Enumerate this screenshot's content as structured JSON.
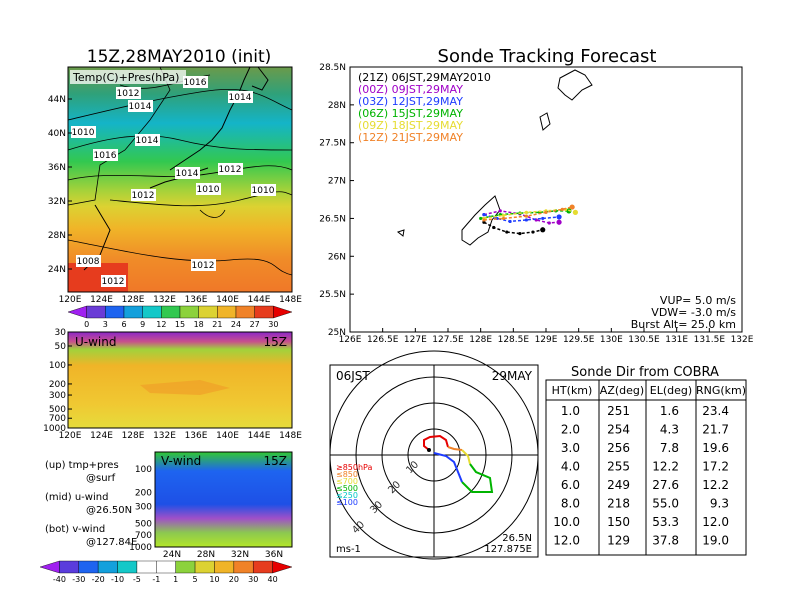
{
  "left": {
    "title": "15Z,28MAY2010 (init)",
    "map_label": "Temp(C)+Pres(hPa)",
    "lon_ticks": [
      "120E",
      "124E",
      "128E",
      "132E",
      "136E",
      "140E",
      "144E",
      "148E"
    ],
    "lat_ticks": [
      "44N",
      "40N",
      "36N",
      "32N",
      "28N",
      "24N"
    ],
    "isobars": [
      "1012",
      "1014",
      "1016",
      "1014",
      "1010",
      "1014",
      "1016",
      "1014",
      "1012",
      "1010",
      "1010",
      "1012",
      "1008",
      "1012",
      "1012"
    ],
    "temp_colorbar": [
      "0",
      "3",
      "6",
      "9",
      "12",
      "15",
      "18",
      "21",
      "24",
      "27",
      "30"
    ],
    "u_title": "U-wind",
    "u_time": "15Z",
    "u_lon_ticks": [
      "120E",
      "124E",
      "128E",
      "132E",
      "136E",
      "140E",
      "144E",
      "148E"
    ],
    "p_ticks": [
      "30",
      "50",
      "100",
      "200",
      "300",
      "500",
      "700",
      "1000"
    ],
    "v_title": "V-wind",
    "v_time": "15Z",
    "v_lat_ticks": [
      "24N",
      "28N",
      "32N",
      "36N"
    ],
    "v_p_ticks": [
      "100",
      "200",
      "300",
      "500",
      "700",
      "1000"
    ],
    "wind_colorbar": [
      "-40",
      "-30",
      "-20",
      "-10",
      "-5",
      "-1",
      "1",
      "5",
      "10",
      "20",
      "30",
      "40"
    ],
    "legend": {
      "l1a": "(up) tmp+pres",
      "l1b": "@surf",
      "l2a": "(mid) u-wind",
      "l2b": "@26.50N",
      "l3a": "(bot) v-wind",
      "l3b": "@127.84E"
    }
  },
  "forecast": {
    "title": "Sonde Tracking Forecast",
    "lat_ticks": [
      "28.5N",
      "28N",
      "27.5N",
      "27N",
      "26.5N",
      "26N",
      "25.5N",
      "25N"
    ],
    "lon_ticks": [
      "126E",
      "126.5E",
      "127E",
      "127.5E",
      "128E",
      "128.5E",
      "129E",
      "129.5E",
      "130E",
      "130.5E",
      "131E",
      "131.5E",
      "132E"
    ],
    "legend": [
      {
        "label": "(21Z)  06JST,29MAY2010",
        "color": "#000000"
      },
      {
        "label": "(00Z)  09JST,29MAY",
        "color": "#a000c8"
      },
      {
        "label": "(03Z)  12JST,29MAY",
        "color": "#1e3cff"
      },
      {
        "label": "(06Z)  15JST,29MAY",
        "color": "#00b400"
      },
      {
        "label": "(09Z)  18JST,29MAY",
        "color": "#e6dc32"
      },
      {
        "label": "(12Z)  21JST,29MAY",
        "color": "#f08228"
      }
    ],
    "vup": "VUP=  5.0  m/s",
    "vdw": "VDW= -3.0  m/s",
    "burst": "Burst Alt=  25.0  km",
    "chart_data": {
      "type": "line",
      "xlim": [
        126,
        132
      ],
      "ylim": [
        25,
        28.5
      ],
      "series": [
        {
          "color": "#000000",
          "x": [
            128.05,
            128.2,
            128.4,
            128.6,
            128.8,
            128.95
          ],
          "y": [
            26.45,
            26.38,
            26.32,
            26.3,
            26.32,
            26.35
          ]
        },
        {
          "color": "#a000c8",
          "x": [
            128.05,
            128.3,
            128.6,
            128.85,
            129.05,
            129.2
          ],
          "y": [
            26.55,
            26.6,
            26.56,
            26.48,
            26.44,
            26.45
          ]
        },
        {
          "color": "#1e3cff",
          "x": [
            128.05,
            128.25,
            128.45,
            128.7,
            128.95,
            129.2
          ],
          "y": [
            26.55,
            26.5,
            26.46,
            26.48,
            26.5,
            26.52
          ]
        },
        {
          "color": "#00b400",
          "x": [
            128.0,
            128.3,
            128.6,
            128.9,
            129.15,
            129.35
          ],
          "y": [
            26.5,
            26.55,
            26.57,
            26.58,
            26.6,
            26.6
          ]
        },
        {
          "color": "#e6dc32",
          "x": [
            128.05,
            128.35,
            128.7,
            129.0,
            129.3,
            129.45
          ],
          "y": [
            26.5,
            26.54,
            26.58,
            26.6,
            26.62,
            26.58
          ]
        },
        {
          "color": "#f08228",
          "x": [
            128.05,
            128.35,
            128.7,
            129.0,
            129.25,
            129.4
          ],
          "y": [
            26.48,
            26.5,
            26.53,
            26.58,
            26.62,
            26.65
          ]
        }
      ]
    }
  },
  "polar": {
    "left_label": "06JST",
    "right_label": "29MAY",
    "ring_labels": [
      "10",
      "20",
      "30",
      "40"
    ],
    "levels": [
      {
        "label": "≥850hPa",
        "color": "#e60000"
      },
      {
        "label": "≤850",
        "color": "#f08228"
      },
      {
        "label": "≤700",
        "color": "#e6dc32"
      },
      {
        "label": "≤500",
        "color": "#00b400"
      },
      {
        "label": "≤250",
        "color": "#00c8c8"
      },
      {
        "label": "≤100",
        "color": "#1e3cff"
      }
    ],
    "unit": "ms-1",
    "lat": "26.5N",
    "lon": "127.875E"
  },
  "table": {
    "title": "Sonde Dir from COBRA",
    "headers": [
      "HT(km)",
      "AZ(deg)",
      "EL(deg)",
      "RNG(km)"
    ],
    "rows": [
      [
        "1.0",
        "251",
        "1.6",
        "23.4"
      ],
      [
        "2.0",
        "254",
        "4.3",
        "21.7"
      ],
      [
        "3.0",
        "256",
        "7.8",
        "19.6"
      ],
      [
        "4.0",
        "255",
        "12.2",
        "17.2"
      ],
      [
        "6.0",
        "249",
        "27.6",
        "12.2"
      ],
      [
        "8.0",
        "218",
        "55.0",
        "9.3"
      ],
      [
        "10.0",
        "150",
        "53.3",
        "12.0"
      ],
      [
        "12.0",
        "129",
        "37.8",
        "19.0"
      ]
    ]
  }
}
